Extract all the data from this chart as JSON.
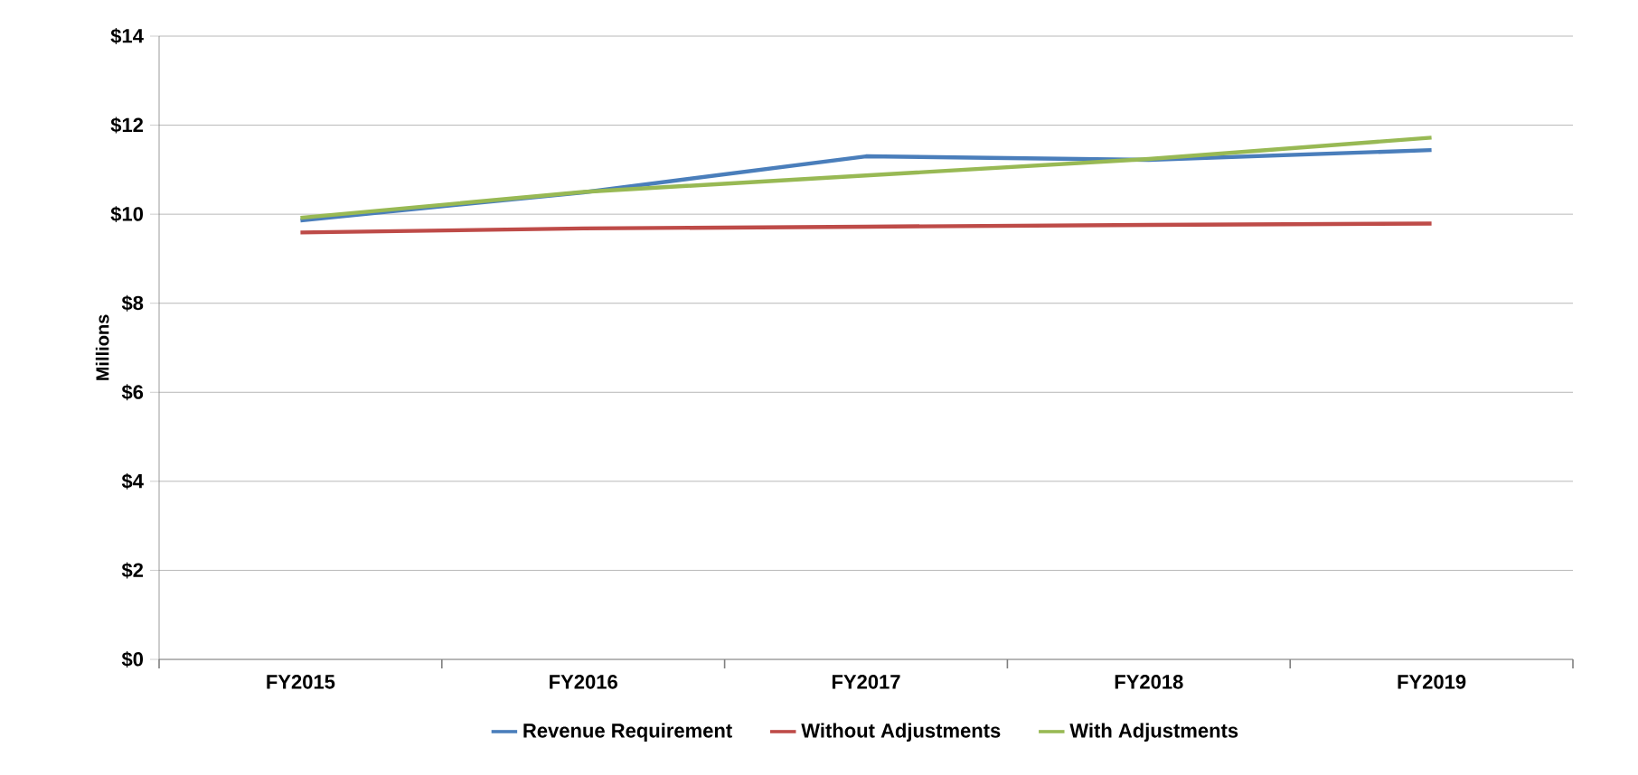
{
  "chart_data": {
    "type": "line",
    "ylabel": "Millions",
    "categories": [
      "FY2015",
      "FY2016",
      "FY2017",
      "FY2018",
      "FY2019"
    ],
    "series": [
      {
        "name": "Revenue Requirement",
        "color": "#4a7ebb",
        "values": [
          9.86,
          10.49,
          11.3,
          11.22,
          11.44
        ]
      },
      {
        "name": "Without Adjustments",
        "color": "#be4b48",
        "values": [
          9.59,
          9.68,
          9.72,
          9.76,
          9.79
        ]
      },
      {
        "name": "With Adjustments",
        "color": "#98b954",
        "values": [
          9.92,
          10.5,
          10.87,
          11.24,
          11.72
        ]
      }
    ],
    "ylim": [
      0,
      14
    ],
    "yticks": [
      {
        "value": 0,
        "label": "$0"
      },
      {
        "value": 2,
        "label": "$2"
      },
      {
        "value": 4,
        "label": "$4"
      },
      {
        "value": 6,
        "label": "$6"
      },
      {
        "value": 8,
        "label": "$8"
      },
      {
        "value": 10,
        "label": "$10"
      },
      {
        "value": 12,
        "label": "$12"
      },
      {
        "value": 14,
        "label": "$14"
      }
    ],
    "grid": "y",
    "legend": "bottom",
    "marker": "none",
    "line_style": "solid"
  }
}
